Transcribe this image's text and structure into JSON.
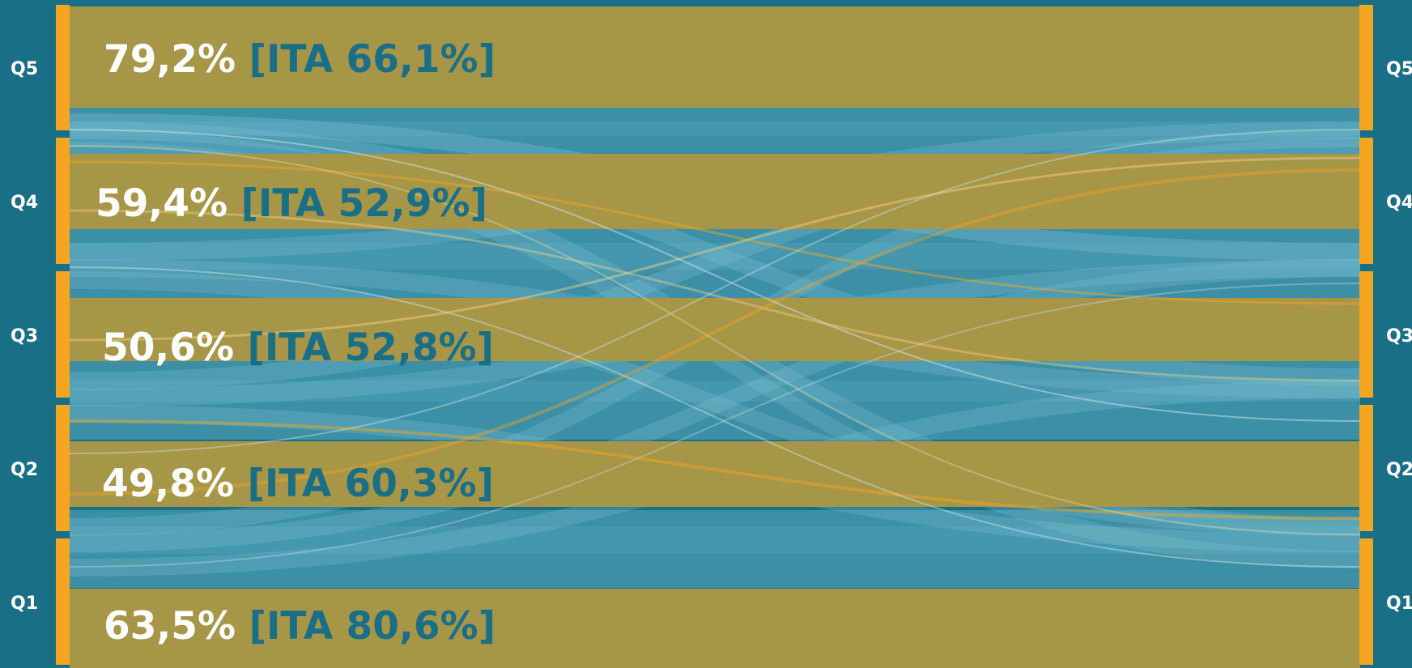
{
  "quintiles": [
    {
      "label": "Q5",
      "persistence": "79,2%",
      "ita": "[ITA 66,1%]"
    },
    {
      "label": "Q4",
      "persistence": "59,4%",
      "ita": "[ITA 52,9%]"
    },
    {
      "label": "Q3",
      "persistence": "50,6%",
      "ita": "[ITA 52,8%]"
    },
    {
      "label": "Q2",
      "persistence": "49,8%",
      "ita": "[ITA 60,3%]"
    },
    {
      "label": "Q1",
      "persistence": "63,5%",
      "ita": "[ITA 80,6%]"
    }
  ],
  "colors": {
    "background": "#196f86",
    "stay_band": "#a79648",
    "transition_band": "#4a9ab0",
    "node_bar": "#f4a623",
    "ita_text": "#1a6f87",
    "label_text": "#ffffff"
  }
}
